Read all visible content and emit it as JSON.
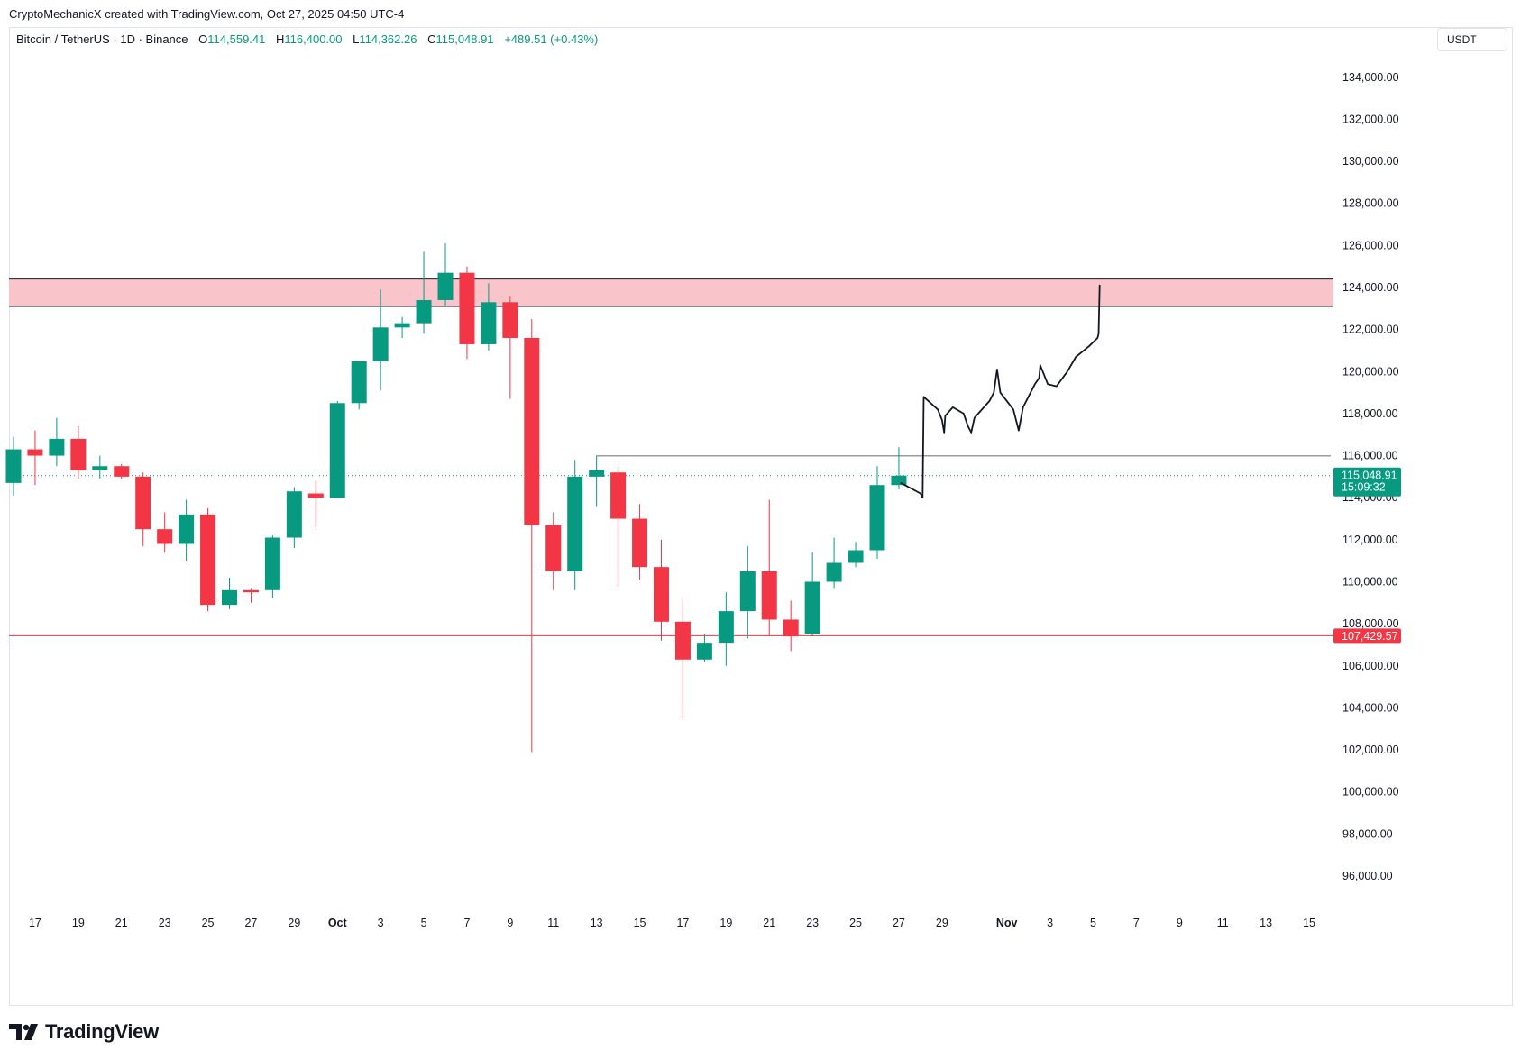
{
  "header": {
    "credit": "CryptoMechanicX created with TradingView.com, Oct 27, 2025 04:50 UTC-4"
  },
  "legend": {
    "symbol": "Bitcoin / TetherUS · 1D · Binance",
    "o_label": "O",
    "o_value": "114,559.41",
    "h_label": "H",
    "h_value": "116,400.00",
    "l_label": "L",
    "l_value": "114,362.26",
    "c_label": "C",
    "c_value": "115,048.91",
    "change": "+489.51 (+0.43%)"
  },
  "currency": "USDT",
  "brand": {
    "name": "TradingView"
  },
  "colors": {
    "up": "#089981",
    "down": "#f23645",
    "zone_fill": "#f9c5ca",
    "support_line": "#f23645",
    "resistance_line": "#787b86",
    "projection": "#131722",
    "grid_border": "#e0e3eb"
  },
  "chart_data": {
    "type": "candlestick",
    "ylim": [
      94000,
      136000
    ],
    "y_ticks": [
      96000,
      98000,
      100000,
      102000,
      104000,
      106000,
      108000,
      110000,
      112000,
      114000,
      116000,
      118000,
      120000,
      122000,
      124000,
      126000,
      128000,
      130000,
      132000,
      134000
    ],
    "y_tick_labels": [
      "96,000.00",
      "98,000.00",
      "100,000.00",
      "102,000.00",
      "104,000.00",
      "106,000.00",
      "108,000.00",
      "110,000.00",
      "112,000.00",
      "114,000.00",
      "116,000.00",
      "118,000.00",
      "120,000.00",
      "122,000.00",
      "124,000.00",
      "126,000.00",
      "128,000.00",
      "130,000.00",
      "132,000.00",
      "134,000.00"
    ],
    "x_ticks": [
      {
        "day": 1,
        "label": "17"
      },
      {
        "day": 3,
        "label": "19"
      },
      {
        "day": 5,
        "label": "21"
      },
      {
        "day": 7,
        "label": "23"
      },
      {
        "day": 9,
        "label": "25"
      },
      {
        "day": 11,
        "label": "27"
      },
      {
        "day": 13,
        "label": "29"
      },
      {
        "day": 15,
        "label": "Oct",
        "bold": true
      },
      {
        "day": 17,
        "label": "3"
      },
      {
        "day": 19,
        "label": "5"
      },
      {
        "day": 21,
        "label": "7"
      },
      {
        "day": 23,
        "label": "9"
      },
      {
        "day": 25,
        "label": "11"
      },
      {
        "day": 27,
        "label": "13"
      },
      {
        "day": 29,
        "label": "15"
      },
      {
        "day": 31,
        "label": "17"
      },
      {
        "day": 33,
        "label": "19"
      },
      {
        "day": 35,
        "label": "21"
      },
      {
        "day": 37,
        "label": "23"
      },
      {
        "day": 39,
        "label": "25"
      },
      {
        "day": 41,
        "label": "27"
      },
      {
        "day": 43,
        "label": "29"
      },
      {
        "day": 46,
        "label": "Nov",
        "bold": true
      },
      {
        "day": 48,
        "label": "3"
      },
      {
        "day": 50,
        "label": "5"
      },
      {
        "day": 52,
        "label": "7"
      },
      {
        "day": 54,
        "label": "9"
      },
      {
        "day": 56,
        "label": "11"
      },
      {
        "day": 58,
        "label": "13"
      },
      {
        "day": 60,
        "label": "15"
      }
    ],
    "candles": [
      {
        "o": 114700,
        "h": 116900,
        "l": 114100,
        "c": 116300
      },
      {
        "o": 116300,
        "h": 117200,
        "l": 114600,
        "c": 116000
      },
      {
        "o": 116000,
        "h": 117800,
        "l": 115500,
        "c": 116800
      },
      {
        "o": 116800,
        "h": 117400,
        "l": 114900,
        "c": 115300
      },
      {
        "o": 115300,
        "h": 116000,
        "l": 114900,
        "c": 115500
      },
      {
        "o": 115500,
        "h": 115600,
        "l": 114900,
        "c": 115000
      },
      {
        "o": 115000,
        "h": 115200,
        "l": 111700,
        "c": 112500
      },
      {
        "o": 112500,
        "h": 113300,
        "l": 111400,
        "c": 111800
      },
      {
        "o": 111800,
        "h": 113900,
        "l": 111000,
        "c": 113200
      },
      {
        "o": 113200,
        "h": 113500,
        "l": 108600,
        "c": 108900
      },
      {
        "o": 108900,
        "h": 110200,
        "l": 108700,
        "c": 109600
      },
      {
        "o": 109600,
        "h": 109700,
        "l": 109000,
        "c": 109500
      },
      {
        "o": 109600,
        "h": 112200,
        "l": 109200,
        "c": 112100
      },
      {
        "o": 112100,
        "h": 114500,
        "l": 111600,
        "c": 114300
      },
      {
        "o": 114200,
        "h": 114800,
        "l": 112600,
        "c": 114000
      },
      {
        "o": 114000,
        "h": 118600,
        "l": 114000,
        "c": 118500
      },
      {
        "o": 118500,
        "h": 120400,
        "l": 118200,
        "c": 120500
      },
      {
        "o": 120500,
        "h": 123900,
        "l": 119100,
        "c": 122100
      },
      {
        "o": 122100,
        "h": 122600,
        "l": 121600,
        "c": 122300
      },
      {
        "o": 122300,
        "h": 125700,
        "l": 121800,
        "c": 123400
      },
      {
        "o": 123400,
        "h": 126100,
        "l": 123100,
        "c": 124700
      },
      {
        "o": 124700,
        "h": 125000,
        "l": 120600,
        "c": 121300
      },
      {
        "o": 121300,
        "h": 124200,
        "l": 121000,
        "c": 123300
      },
      {
        "o": 123300,
        "h": 123600,
        "l": 118700,
        "c": 121600
      },
      {
        "o": 121600,
        "h": 122500,
        "l": 101900,
        "c": 112700
      },
      {
        "o": 112700,
        "h": 113300,
        "l": 109600,
        "c": 110500
      },
      {
        "o": 110500,
        "h": 115800,
        "l": 109600,
        "c": 115000
      },
      {
        "o": 115000,
        "h": 116000,
        "l": 113600,
        "c": 115300
      },
      {
        "o": 115200,
        "h": 115500,
        "l": 109800,
        "c": 113000
      },
      {
        "o": 113000,
        "h": 113700,
        "l": 110100,
        "c": 110700
      },
      {
        "o": 110700,
        "h": 112000,
        "l": 107200,
        "c": 108100
      },
      {
        "o": 108100,
        "h": 109200,
        "l": 103500,
        "c": 106300
      },
      {
        "o": 106300,
        "h": 107500,
        "l": 106200,
        "c": 107100
      },
      {
        "o": 107100,
        "h": 109500,
        "l": 106000,
        "c": 108600
      },
      {
        "o": 108600,
        "h": 111700,
        "l": 107300,
        "c": 110500
      },
      {
        "o": 110500,
        "h": 113900,
        "l": 107400,
        "c": 108200
      },
      {
        "o": 108200,
        "h": 109100,
        "l": 106700,
        "c": 107400
      },
      {
        "o": 107500,
        "h": 111400,
        "l": 107400,
        "c": 110000
      },
      {
        "o": 110000,
        "h": 112100,
        "l": 109700,
        "c": 110900
      },
      {
        "o": 110900,
        "h": 111900,
        "l": 110700,
        "c": 111500
      },
      {
        "o": 111500,
        "h": 115500,
        "l": 111100,
        "c": 114600
      },
      {
        "o": 114600,
        "h": 116400,
        "l": 114400,
        "c": 115049
      }
    ],
    "resistance_zone": {
      "low": 123100,
      "high": 124400
    },
    "support_level": 107429.57,
    "support_label": "107,429.57",
    "breakout_line": {
      "from_day": 27,
      "to_day": 61,
      "value": 115990
    },
    "projection_path": [
      [
        41.1,
        114700
      ],
      [
        42.0,
        114200
      ],
      [
        42.1,
        114000
      ],
      [
        42.15,
        118800
      ],
      [
        42.8,
        118200
      ],
      [
        43.0,
        117700
      ],
      [
        43.1,
        117100
      ],
      [
        43.15,
        117900
      ],
      [
        43.5,
        118300
      ],
      [
        44.0,
        118000
      ],
      [
        44.2,
        117400
      ],
      [
        44.35,
        117100
      ],
      [
        44.5,
        117800
      ],
      [
        45.2,
        118600
      ],
      [
        45.4,
        119000
      ],
      [
        45.55,
        120100
      ],
      [
        45.7,
        119000
      ],
      [
        46.3,
        118200
      ],
      [
        46.55,
        117200
      ],
      [
        46.75,
        118300
      ],
      [
        47.3,
        119400
      ],
      [
        47.5,
        119700
      ],
      [
        47.55,
        120300
      ],
      [
        47.9,
        119400
      ],
      [
        48.3,
        119300
      ],
      [
        48.8,
        120000
      ],
      [
        49.2,
        120700
      ],
      [
        49.8,
        121200
      ],
      [
        50.2,
        121600
      ],
      [
        50.25,
        121800
      ],
      [
        50.3,
        124100
      ]
    ],
    "last_price": {
      "value": 115048.91,
      "label": "115,048.91",
      "countdown": "15:09:32"
    }
  }
}
